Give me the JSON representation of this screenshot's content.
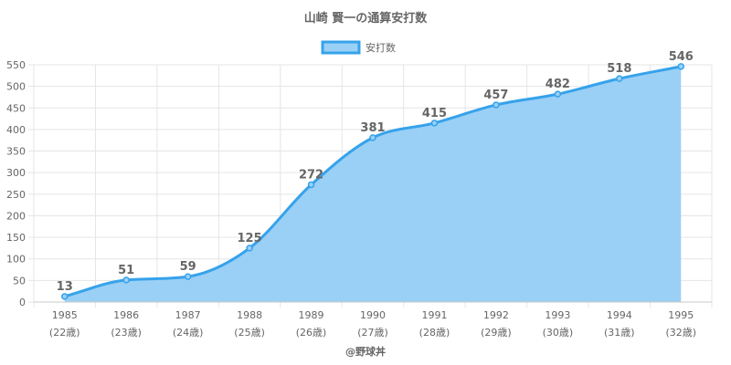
{
  "chart_data": {
    "type": "area",
    "title": "山崎 賢一の通算安打数",
    "legend": {
      "label": "安打数",
      "position": "top"
    },
    "categories": [
      "1985",
      "1986",
      "1987",
      "1988",
      "1989",
      "1990",
      "1991",
      "1992",
      "1993",
      "1994",
      "1995"
    ],
    "ages": [
      "(22歳)",
      "(23歳)",
      "(24歳)",
      "(25歳)",
      "(26歳)",
      "(27歳)",
      "(28歳)",
      "(29歳)",
      "(30歳)",
      "(31歳)",
      "(32歳)"
    ],
    "series": [
      {
        "name": "安打数",
        "values": [
          13,
          51,
          59,
          125,
          272,
          381,
          415,
          457,
          482,
          518,
          546
        ]
      }
    ],
    "ylim": [
      0,
      550
    ],
    "yticks": [
      0,
      50,
      100,
      150,
      200,
      250,
      300,
      350,
      400,
      450,
      500,
      550
    ],
    "grid": true,
    "colors": {
      "line": "#36a2eb",
      "fill": "#9ad0f5",
      "grid": "#e5e5e5",
      "text": "#666666"
    }
  },
  "credit": "@野球丼"
}
